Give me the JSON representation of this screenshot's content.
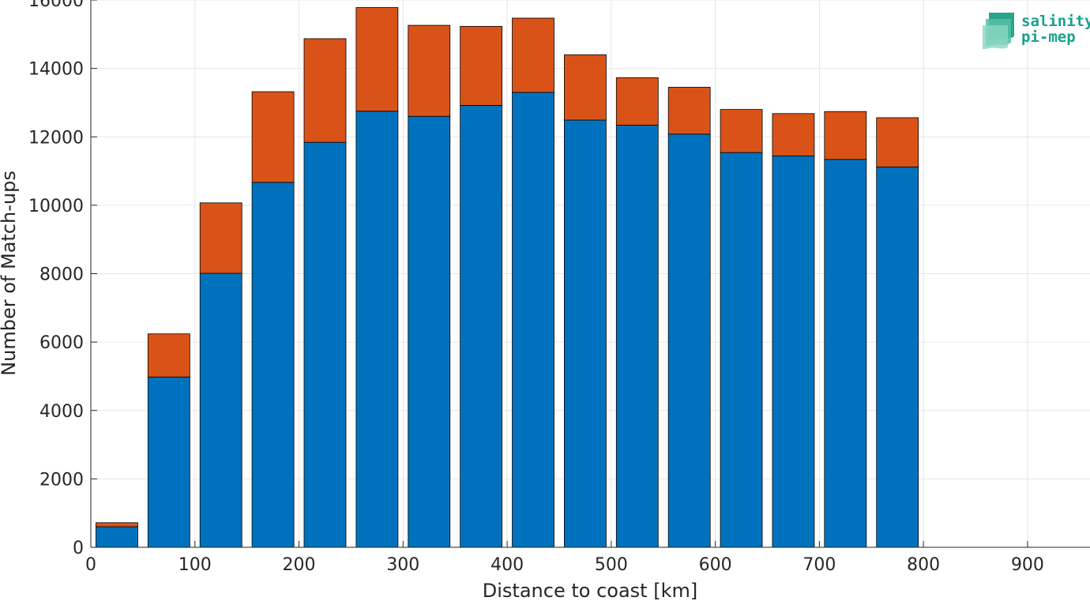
{
  "chart_data": {
    "type": "bar",
    "stacked": true,
    "xlabel": "Distance to coast [km]",
    "ylabel": "Number of Match-ups",
    "xlim": [
      0,
      960
    ],
    "ylim": [
      0,
      16000
    ],
    "x_ticks": [
      0,
      100,
      200,
      300,
      400,
      500,
      600,
      700,
      800,
      900
    ],
    "y_ticks": [
      0,
      2000,
      4000,
      6000,
      8000,
      10000,
      12000,
      14000,
      16000
    ],
    "grid": true,
    "bin_width": 50,
    "bin_centers": [
      25,
      75,
      125,
      175,
      225,
      275,
      325,
      375,
      425,
      475,
      525,
      575,
      625,
      675,
      725,
      775,
      825,
      875,
      925
    ],
    "series": [
      {
        "color": "#0072bd",
        "values": [
          600,
          4980,
          8010,
          10670,
          11840,
          12750,
          12600,
          12920,
          13300,
          12490,
          12340,
          12080,
          11540,
          11440,
          11340,
          11120,
          0,
          0,
          0
        ]
      },
      {
        "color": "#d95319",
        "values": [
          120,
          1260,
          2060,
          2650,
          3030,
          3030,
          2660,
          2310,
          2170,
          1910,
          1390,
          1370,
          1260,
          1240,
          1400,
          1440,
          0,
          0,
          0
        ]
      }
    ]
  },
  "logo": {
    "line1": "salinity",
    "line2": "pi-mep"
  }
}
